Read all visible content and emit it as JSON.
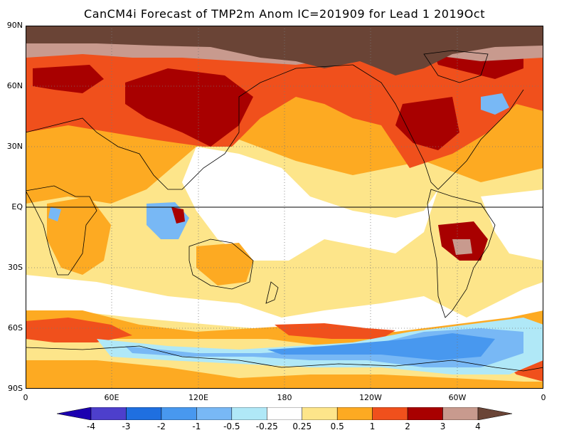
{
  "title": "CanCM4i Forecast of TMP2m Anom IC=201909 for Lead 1 2019Oct",
  "lat_labels": [
    "90N",
    "60N",
    "30N",
    "EQ",
    "30S",
    "60S",
    "90S"
  ],
  "lon_labels": [
    "0",
    "60E",
    "120E",
    "180",
    "120W",
    "60W",
    "0"
  ],
  "colorbar": {
    "levels": [
      "-4",
      "-3",
      "-2",
      "-1",
      "-0.5",
      "-0.25",
      "0.25",
      "0.5",
      "1",
      "2",
      "3",
      "4"
    ],
    "colors": [
      "#1c00b0",
      "#4d3fcc",
      "#1f6fe0",
      "#4898ef",
      "#78b8f5",
      "#b0e8f7",
      "#ffffff",
      "#fde58a",
      "#fdaa22",
      "#f0501c",
      "#a80000",
      "#c89a8e",
      "#6a4436"
    ]
  },
  "colors": {
    "white": "#ffffff",
    "yellow": "#fde58a",
    "orange": "#fdaa22",
    "red_orange": "#f0501c",
    "dark_red": "#a80000",
    "pink_brown": "#c89a8e",
    "brown": "#6a4436",
    "light_cyan": "#b0e8f7",
    "light_blue": "#78b8f5",
    "blue": "#4898ef",
    "deep_blue": "#1f6fe0"
  }
}
